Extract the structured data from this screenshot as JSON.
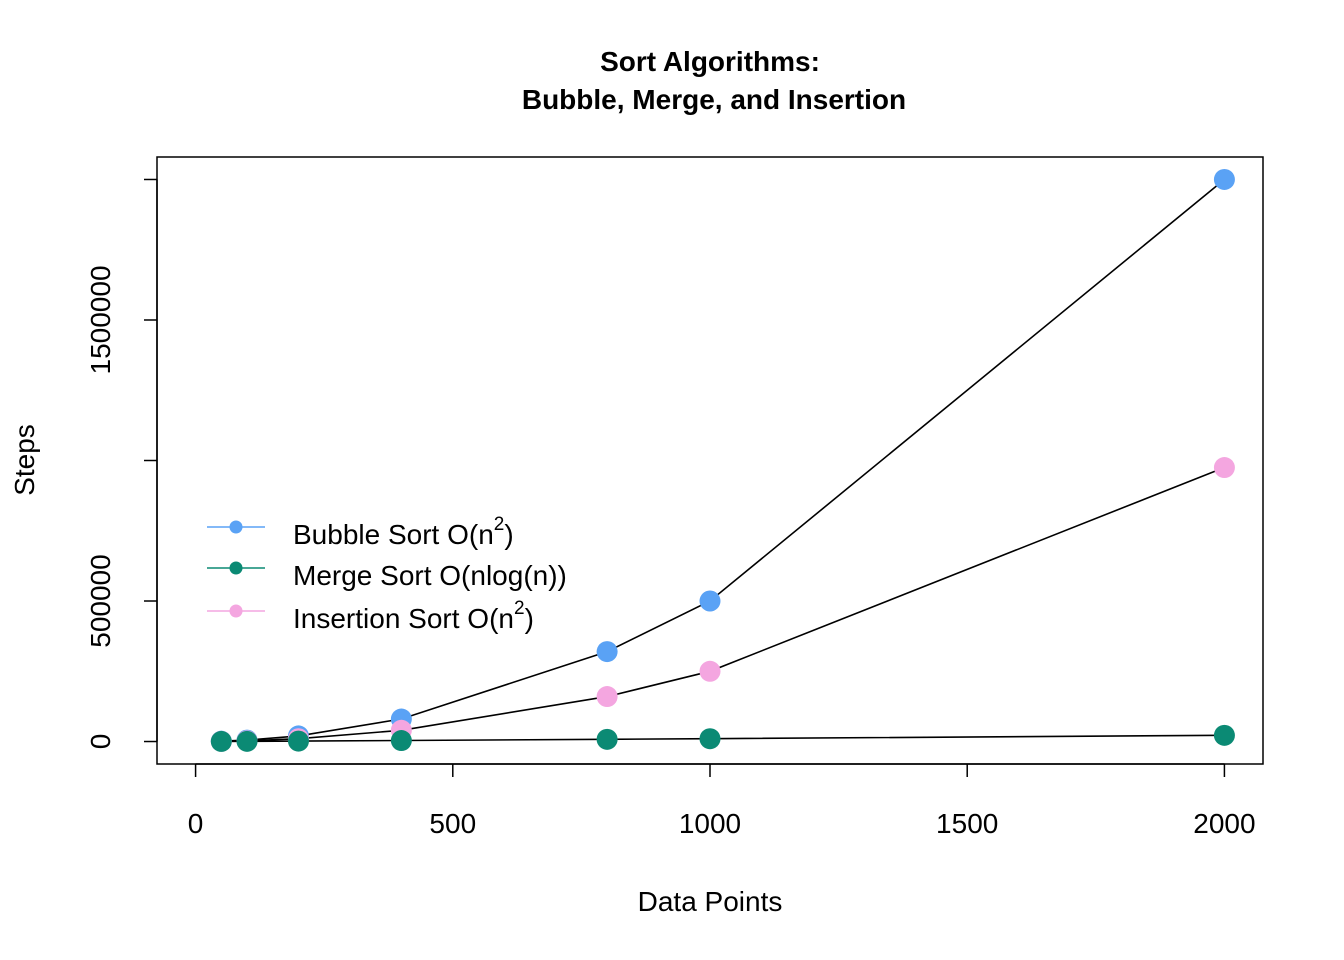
{
  "chart_data": {
    "type": "line",
    "title": [
      "Sort Algorithms:",
      "Bubble, Merge, and Insertion"
    ],
    "xlabel": "Data Points",
    "ylabel": "Steps",
    "xlim": [
      -75,
      2075
    ],
    "ylim": [
      -80000,
      2080000
    ],
    "x_ticks": [
      0,
      500,
      1000,
      1500,
      2000
    ],
    "x_tick_labels": [
      "0",
      "500",
      "1000",
      "1500",
      "2000"
    ],
    "y_ticks": [
      0,
      500000,
      1000000,
      1500000,
      2000000
    ],
    "y_tick_labels": [
      "0",
      "500000",
      "",
      "1500000",
      ""
    ],
    "grid": false,
    "legend_position": "middle-left",
    "series": [
      {
        "name": "Bubble Sort O(n2)",
        "legend_base": "Bubble Sort O(n",
        "legend_sup": "2",
        "legend_tail": ")",
        "color": "#5aa2f5",
        "x": [
          50,
          100,
          200,
          400,
          800,
          1000,
          2000
        ],
        "y": [
          1250,
          5000,
          20000,
          80000,
          320000,
          500000,
          2000000
        ]
      },
      {
        "name": "Merge Sort O(nlog(n))",
        "legend_base": "Merge Sort O(nlog(n))",
        "legend_sup": "",
        "legend_tail": "",
        "color": "#0b8a74",
        "x": [
          50,
          100,
          200,
          400,
          800,
          1000,
          2000
        ],
        "y": [
          300,
          700,
          1600,
          3500,
          7800,
          10000,
          22000
        ]
      },
      {
        "name": "Insertion Sort O(n2)",
        "legend_base": "Insertion Sort O(n",
        "legend_sup": "2",
        "legend_tail": ")",
        "color": "#f4a6e0",
        "x": [
          50,
          100,
          200,
          400,
          800,
          1000,
          2000
        ],
        "y": [
          600,
          2500,
          10000,
          40000,
          160000,
          250000,
          975000
        ]
      }
    ]
  }
}
